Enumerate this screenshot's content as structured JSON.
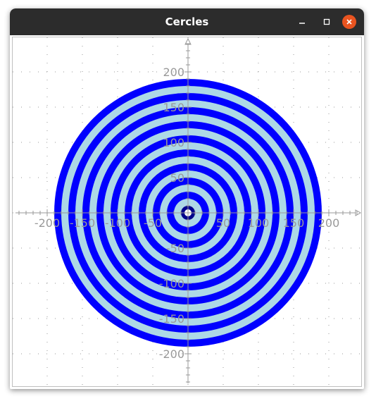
{
  "window": {
    "title": "Cercles",
    "controls": {
      "minimize": "minimize-icon",
      "maximize": "maximize-icon",
      "close": "close-icon"
    }
  },
  "chart_data": {
    "type": "area",
    "title": "",
    "xlabel": "",
    "ylabel": "",
    "xlim": [
      -245,
      245
    ],
    "ylim": [
      -245,
      245
    ],
    "grid": true,
    "x_ticks": [
      "-200",
      "-150",
      "-100",
      "-50",
      "50",
      "100",
      "150",
      "200"
    ],
    "y_ticks": [
      "200",
      "150",
      "100",
      "50",
      "-50",
      "-100",
      "-150",
      "-200"
    ],
    "x_tick_values": [
      -200,
      -150,
      -100,
      -50,
      50,
      100,
      150,
      200
    ],
    "y_tick_values": [
      200,
      150,
      100,
      50,
      -50,
      -100,
      -150,
      -200
    ],
    "series": [
      {
        "shape": "concentric-circles",
        "radii": [
          190,
          180,
          170,
          160,
          150,
          140,
          130,
          120,
          110,
          100,
          90,
          80,
          70,
          60,
          50,
          40,
          30,
          20,
          10,
          5
        ],
        "colors": [
          "#0000ff",
          "#add8e6",
          "#0000ff",
          "#add8e6",
          "#0000ff",
          "#add8e6",
          "#0000ff",
          "#add8e6",
          "#0000ff",
          "#add8e6",
          "#0000ff",
          "#add8e6",
          "#0000ff",
          "#add8e6",
          "#0000ff",
          "#add8e6",
          "#0000ff",
          "#add8e6",
          "#00008b",
          "#ffffff"
        ]
      }
    ],
    "axis_color": "#999999",
    "tick_label_color": "#999999"
  }
}
